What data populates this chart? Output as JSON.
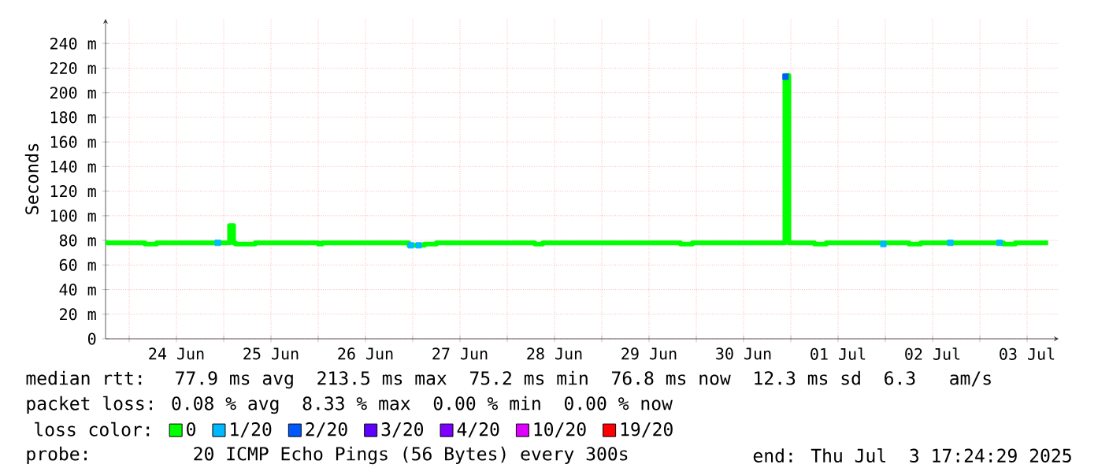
{
  "chart_data": {
    "type": "step",
    "ylabel": "Seconds",
    "legend_title": "loss color:",
    "legend": "bottom",
    "grid": true,
    "xlim": [
      "2025-06-23T18:00",
      "2025-07-03T20:00"
    ],
    "ylim": [
      0,
      260
    ],
    "xticks": [
      {
        "value": "2025-06-24T00:00",
        "label": null
      },
      {
        "value": "2025-06-24T12:00",
        "label": "24 Jun"
      },
      {
        "value": "2025-06-25T00:00",
        "label": null
      },
      {
        "value": "2025-06-25T12:00",
        "label": "25 Jun"
      },
      {
        "value": "2025-06-26T00:00",
        "label": null
      },
      {
        "value": "2025-06-26T12:00",
        "label": "26 Jun"
      },
      {
        "value": "2025-06-27T00:00",
        "label": null
      },
      {
        "value": "2025-06-27T12:00",
        "label": "27 Jun"
      },
      {
        "value": "2025-06-28T00:00",
        "label": null
      },
      {
        "value": "2025-06-28T12:00",
        "label": "28 Jun"
      },
      {
        "value": "2025-06-29T00:00",
        "label": null
      },
      {
        "value": "2025-06-29T12:00",
        "label": "29 Jun"
      },
      {
        "value": "2025-06-30T00:00",
        "label": null
      },
      {
        "value": "2025-06-30T12:00",
        "label": "30 Jun"
      },
      {
        "value": "2025-07-01T00:00",
        "label": null
      },
      {
        "value": "2025-07-01T12:00",
        "label": "01 Jul"
      },
      {
        "value": "2025-07-02T00:00",
        "label": null
      },
      {
        "value": "2025-07-02T12:00",
        "label": "02 Jul"
      },
      {
        "value": "2025-07-03T00:00",
        "label": null
      },
      {
        "value": "2025-07-03T12:00",
        "label": "03 Jul"
      }
    ],
    "yticks": [
      {
        "value": 0,
        "label": "0"
      },
      {
        "value": 20,
        "label": "20 m"
      },
      {
        "value": 40,
        "label": "40 m"
      },
      {
        "value": 60,
        "label": "60 m"
      },
      {
        "value": 80,
        "label": "80 m"
      },
      {
        "value": 100,
        "label": "100 m"
      },
      {
        "value": 120,
        "label": "120 m"
      },
      {
        "value": 140,
        "label": "140 m"
      },
      {
        "value": 160,
        "label": "160 m"
      },
      {
        "value": 180,
        "label": "180 m"
      },
      {
        "value": 200,
        "label": "200 m"
      },
      {
        "value": 220,
        "label": "220 m"
      },
      {
        "value": 240,
        "label": "240 m"
      }
    ],
    "series": [
      {
        "name": "0",
        "color": "#00ff00",
        "x": [
          "2025-06-23T18:00",
          "2025-06-24T04:00",
          "2025-06-24T07:00",
          "2025-06-25T01:30",
          "2025-06-25T02:30",
          "2025-06-25T03:00",
          "2025-06-25T08:00",
          "2025-06-26T00:00",
          "2025-06-26T01:00",
          "2025-06-26T04:00",
          "2025-06-26T23:00",
          "2025-06-27T03:00",
          "2025-06-27T06:00",
          "2025-06-28T07:00",
          "2025-06-28T09:00",
          "2025-06-29T00:00",
          "2025-06-29T03:00",
          "2025-06-29T20:00",
          "2025-06-29T23:00",
          "2025-06-30T22:30",
          "2025-06-30T23:30",
          "2025-07-01T06:00",
          "2025-07-01T09:00",
          "2025-07-02T06:00",
          "2025-07-02T09:00",
          "2025-07-03T06:00",
          "2025-07-03T09:00",
          "2025-07-03T17:20"
        ],
        "values": [
          78,
          77,
          78,
          92,
          78,
          77,
          78,
          77,
          78,
          78,
          76,
          77,
          78,
          77,
          78,
          78,
          78,
          77,
          78,
          214,
          78,
          77,
          78,
          77,
          78,
          77,
          78,
          78
        ]
      },
      {
        "name": "1/20",
        "type": "scatter",
        "marker": "square",
        "color": "#00b8ff",
        "x": [
          "2025-06-24T22:30",
          "2025-06-26T23:30",
          "2025-06-27T01:30",
          "2025-07-01T23:30",
          "2025-07-02T16:30",
          "2025-07-03T05:00"
        ],
        "values": [
          78,
          76,
          76,
          77,
          78,
          78
        ]
      },
      {
        "name": "2/20",
        "type": "scatter",
        "marker": "square",
        "color": "#0059ff",
        "x": [
          "2025-06-30T22:40"
        ],
        "values": [
          213
        ]
      },
      {
        "name": "3/20",
        "type": "scatter",
        "color": "#5e00ff"
      },
      {
        "name": "4/20",
        "type": "scatter",
        "color": "#7e00ff"
      },
      {
        "name": "10/20",
        "type": "scatter",
        "color": "#dd00ff"
      },
      {
        "name": "19/20",
        "type": "scatter",
        "color": "#ff0000"
      }
    ],
    "annotations": [
      "median rtt:  77.9 ms avg  213.5 ms max  75.2 ms min  76.8 ms now  12.3 ms sd  6.3   am/s",
      "packet loss: 0.08 % avg  8.33 % max  0.00 % min  0.00 % now",
      "probe:       20 ICMP Echo Pings (56 Bytes) every 300s",
      "end: Thu Jul  3 17:24:29 2025"
    ]
  }
}
